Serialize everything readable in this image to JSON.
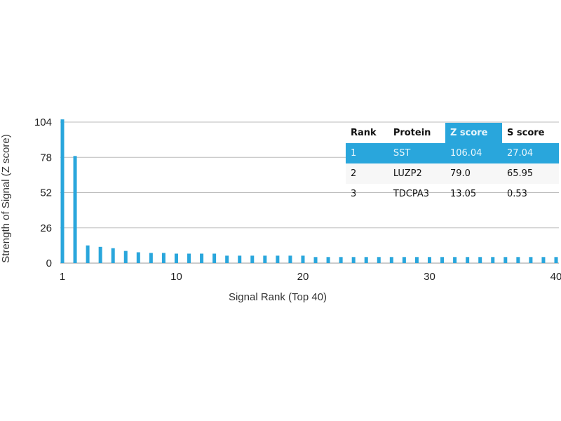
{
  "chart_data": {
    "type": "bar",
    "xlabel": "Signal Rank (Top 40)",
    "ylabel": "Strength of Signal (Z score)",
    "x": [
      1,
      2,
      3,
      4,
      5,
      6,
      7,
      8,
      9,
      10,
      11,
      12,
      13,
      14,
      15,
      16,
      17,
      18,
      19,
      20,
      21,
      22,
      23,
      24,
      25,
      26,
      27,
      28,
      29,
      30,
      31,
      32,
      33,
      34,
      35,
      36,
      37,
      38,
      39,
      40
    ],
    "values": [
      106.04,
      79.0,
      13.05,
      12,
      11,
      9,
      8,
      7.5,
      7.5,
      7,
      7,
      7,
      7,
      5.5,
      5.5,
      5.5,
      5.5,
      5.5,
      5.5,
      5.5,
      4.5,
      4.5,
      4.5,
      4.5,
      4.5,
      4.5,
      4.5,
      4.5,
      4.5,
      4.5,
      4.5,
      4.5,
      4.5,
      4.5,
      4.5,
      4.5,
      4.5,
      4.5,
      4.5,
      4.5
    ],
    "yticks": [
      0,
      26,
      52,
      78,
      104
    ],
    "xticks": [
      1,
      10,
      20,
      30,
      40
    ],
    "ylim": [
      0,
      104
    ],
    "xlim": [
      1,
      40
    ],
    "grid": true,
    "bar_color": "#29a6dc"
  },
  "table": {
    "headers": [
      "Rank",
      "Protein",
      "Z score",
      "S score"
    ],
    "highlight_color": "#29a6dc",
    "rows": [
      [
        "1",
        "SST",
        "106.04",
        "27.04"
      ],
      [
        "2",
        "LUZP2",
        "79.0",
        "65.95"
      ],
      [
        "3",
        "TDCPA3",
        "13.05",
        "0.53"
      ]
    ]
  }
}
